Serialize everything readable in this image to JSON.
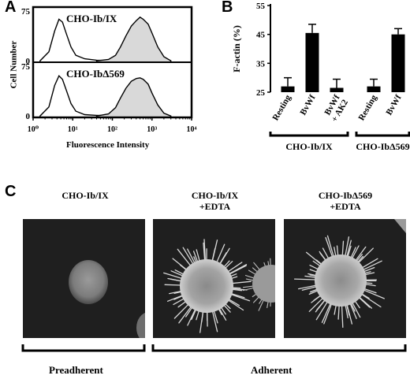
{
  "panels": {
    "a": {
      "letter": "A",
      "top_label": "CHO-Ib/IX",
      "bottom_label": "CHO-IbΔ569",
      "ylabel": "Cell Number",
      "xlabel": "Fluorescence Intensity",
      "y_ticks_top": [
        "75",
        "0"
      ],
      "y_ticks_bottom": [
        "75",
        "0"
      ]
    },
    "b": {
      "letter": "B"
    },
    "c": {
      "letter": "C",
      "captions": [
        {
          "line1": "CHO-Ib/IX",
          "line2": ""
        },
        {
          "line1": "CHO-Ib/IX",
          "line2": "+EDTA"
        },
        {
          "line1": "CHO-IbΔ569",
          "line2": "+EDTA"
        }
      ],
      "bracket_labels": [
        "Preadherent",
        "Adherent"
      ]
    }
  },
  "chart_data": [
    {
      "type": "area",
      "panel": "A-top",
      "xscale": "log",
      "xlim": [
        1,
        10000
      ],
      "ylim": [
        0,
        75
      ],
      "x_tick_labels": [
        "10⁰",
        "10¹",
        "10²",
        "10³",
        "10⁴"
      ],
      "series": [
        {
          "name": "",
          "fill": "none",
          "x": [
            1.5,
            2.5,
            3.5,
            4.5,
            5.5,
            7,
            9,
            12,
            20,
            40,
            100
          ],
          "y": [
            2,
            15,
            45,
            62,
            58,
            40,
            22,
            10,
            5,
            3,
            2
          ]
        },
        {
          "name": "",
          "fill": "#d9d9d9",
          "x": [
            40,
            80,
            120,
            160,
            220,
            300,
            400,
            500,
            600,
            800,
            1000,
            1400,
            2000,
            3000
          ],
          "y": [
            2,
            4,
            10,
            22,
            38,
            52,
            60,
            65,
            62,
            55,
            42,
            22,
            8,
            2
          ]
        }
      ]
    },
    {
      "type": "area",
      "panel": "A-bottom",
      "xscale": "log",
      "xlim": [
        1,
        10000
      ],
      "ylim": [
        0,
        75
      ],
      "x_tick_labels": [
        "10⁰",
        "10¹",
        "10²",
        "10³",
        "10⁴"
      ],
      "series": [
        {
          "name": "",
          "fill": "none",
          "x": [
            1.5,
            2.5,
            3.5,
            4.5,
            5.5,
            7,
            9,
            12,
            20,
            40,
            100
          ],
          "y": [
            2,
            15,
            46,
            60,
            55,
            38,
            20,
            9,
            4,
            3,
            2
          ]
        },
        {
          "name": "",
          "fill": "#d9d9d9",
          "x": [
            40,
            80,
            120,
            160,
            220,
            300,
            400,
            500,
            600,
            800,
            1000,
            1400,
            2000,
            3000
          ],
          "y": [
            2,
            5,
            14,
            28,
            42,
            52,
            56,
            57,
            55,
            48,
            35,
            18,
            6,
            2
          ]
        }
      ]
    },
    {
      "type": "bar",
      "panel": "B",
      "ylabel": "F-actin (%)",
      "ylim": [
        25,
        55
      ],
      "y_ticks": [
        25,
        35,
        45,
        55
      ],
      "categories": [
        "Resting",
        "BvWf",
        "BvWf\n+ AK2",
        "Resting",
        "BvWf"
      ],
      "values": [
        27,
        45.5,
        26.5,
        27,
        45
      ],
      "errors": [
        3,
        3,
        3,
        2.5,
        2
      ],
      "groups": [
        {
          "label": "CHO-Ib/IX",
          "members": [
            0,
            1,
            2
          ]
        },
        {
          "label": "CHO-IbΔ569",
          "members": [
            3,
            4
          ]
        }
      ]
    }
  ]
}
